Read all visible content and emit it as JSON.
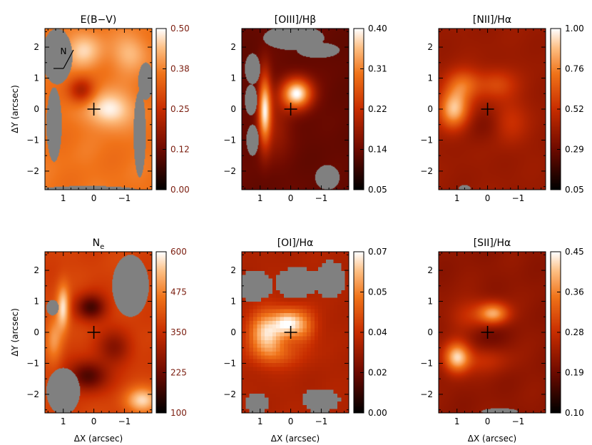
{
  "chart_data": [
    {
      "type": "heatmap",
      "title": "E(B−V)",
      "colorbar_ticks": [
        "0.50",
        "0.38",
        "0.25",
        "0.12",
        "0.00"
      ],
      "colorbar_tick_color": "#7a1c0e",
      "xlabel": "",
      "ylabel": "ΔY (arcsec)",
      "x_ticks": [
        "1",
        "0",
        "−1"
      ],
      "y_ticks": [
        "2",
        "1",
        "0",
        "−1",
        "−2"
      ],
      "xlim": [
        1.6,
        -1.9
      ],
      "ylim": [
        -2.6,
        2.6
      ],
      "vmin": 0.0,
      "vmax": 0.5,
      "compass": "N",
      "center_marker": [
        0,
        0
      ],
      "field": {
        "base": 0.36,
        "blobs": [
          {
            "x": -0.5,
            "y": 0.0,
            "sx": 0.5,
            "sy": 0.4,
            "a": 0.14
          },
          {
            "x": 0.3,
            "y": 1.9,
            "sx": 0.4,
            "sy": 0.4,
            "a": 0.1
          },
          {
            "x": 0.4,
            "y": 0.6,
            "sx": 0.3,
            "sy": 0.3,
            "a": -0.16
          },
          {
            "x": -1.2,
            "y": 1.8,
            "sx": 0.4,
            "sy": 0.4,
            "a": 0.08
          }
        ],
        "mask": [
          {
            "x": 1.2,
            "y": 1.7,
            "rx": 0.5,
            "ry": 0.9
          },
          {
            "x": 1.3,
            "y": -0.5,
            "rx": 0.25,
            "ry": 1.2
          },
          {
            "x": -1.7,
            "y": 0.9,
            "rx": 0.25,
            "ry": 0.6
          },
          {
            "x": -1.5,
            "y": -0.8,
            "rx": 0.2,
            "ry": 1.4
          },
          {
            "x": 0.2,
            "y": -2.6,
            "rx": 1.6,
            "ry": 0.12
          }
        ]
      }
    },
    {
      "type": "heatmap",
      "title": "[OIII]/Hβ",
      "colorbar_ticks": [
        "0.40",
        "0.31",
        "0.22",
        "0.14",
        "0.05"
      ],
      "colorbar_tick_color": "#000000",
      "xlabel": "",
      "ylabel": "",
      "x_ticks": [
        "1",
        "0",
        "−1"
      ],
      "y_ticks": [
        "2",
        "1",
        "0",
        "−1",
        "−2"
      ],
      "xlim": [
        1.6,
        -1.9
      ],
      "ylim": [
        -2.6,
        2.6
      ],
      "vmin": 0.05,
      "vmax": 0.4,
      "center_marker": [
        0,
        0
      ],
      "field": {
        "base": 0.13,
        "blobs": [
          {
            "x": -0.2,
            "y": 0.5,
            "sx": 0.35,
            "sy": 0.35,
            "a": 0.27
          },
          {
            "x": 0.85,
            "y": 0.0,
            "sx": 0.15,
            "sy": 0.8,
            "a": 0.24
          },
          {
            "x": 0.5,
            "y": -0.6,
            "sx": 0.35,
            "sy": 0.7,
            "a": 0.05
          }
        ],
        "mask": [
          {
            "x": 1.25,
            "y": 1.3,
            "rx": 0.25,
            "ry": 0.5
          },
          {
            "x": 1.3,
            "y": 0.3,
            "rx": 0.2,
            "ry": 0.5
          },
          {
            "x": 1.25,
            "y": -1.0,
            "rx": 0.2,
            "ry": 0.5
          },
          {
            "x": -0.1,
            "y": 2.3,
            "rx": 1.0,
            "ry": 0.4
          },
          {
            "x": -0.9,
            "y": 1.9,
            "rx": 0.7,
            "ry": 0.25
          },
          {
            "x": -1.2,
            "y": -2.2,
            "rx": 0.4,
            "ry": 0.4
          }
        ]
      }
    },
    {
      "type": "heatmap",
      "title": "[NII]/Hα",
      "colorbar_ticks": [
        "1.00",
        "0.76",
        "0.52",
        "0.29",
        "0.05"
      ],
      "colorbar_tick_color": "#000000",
      "xlabel": "",
      "ylabel": "",
      "x_ticks": [
        "1",
        "0",
        "−1"
      ],
      "y_ticks": [
        "2",
        "1",
        "0",
        "−1",
        "−2"
      ],
      "xlim": [
        1.6,
        -1.9
      ],
      "ylim": [
        -2.6,
        2.6
      ],
      "vmin": 0.05,
      "vmax": 1.0,
      "center_marker": [
        0,
        0
      ],
      "field": {
        "base": 0.4,
        "blobs": [
          {
            "x": 1.1,
            "y": 0.0,
            "sx": 0.35,
            "sy": 0.45,
            "a": 0.5
          },
          {
            "x": 0.8,
            "y": 0.8,
            "sx": 0.4,
            "sy": 0.35,
            "a": 0.28
          },
          {
            "x": -0.3,
            "y": 0.8,
            "sx": 0.45,
            "sy": 0.35,
            "a": 0.2
          },
          {
            "x": -0.7,
            "y": -0.4,
            "sx": 0.4,
            "sy": 0.5,
            "a": 0.15
          },
          {
            "x": 0.1,
            "y": -0.5,
            "sx": 0.5,
            "sy": 0.4,
            "a": -0.08
          }
        ],
        "mask": [
          {
            "x": 0.75,
            "y": -2.55,
            "rx": 0.2,
            "ry": 0.1
          }
        ]
      }
    },
    {
      "type": "heatmap",
      "title": "N",
      "title_subscript": "e",
      "colorbar_ticks": [
        "600",
        "475",
        "350",
        "225",
        "100"
      ],
      "colorbar_tick_color": "#7a1c0e",
      "xlabel": "ΔX (arcsec)",
      "ylabel": "ΔY (arcsec)",
      "x_ticks": [
        "1",
        "0",
        "−1"
      ],
      "y_ticks": [
        "2",
        "1",
        "0",
        "−1",
        "−2"
      ],
      "xlim": [
        1.6,
        -1.9
      ],
      "ylim": [
        -2.6,
        2.6
      ],
      "vmin": 100,
      "vmax": 600,
      "center_marker": [
        0,
        0
      ],
      "field": {
        "base": 380,
        "blobs": [
          {
            "x": 1.0,
            "y": 0.8,
            "sx": 0.15,
            "sy": 0.5,
            "a": 200
          },
          {
            "x": -1.6,
            "y": -2.2,
            "sx": 0.4,
            "sy": 0.3,
            "a": 180
          },
          {
            "x": 0.1,
            "y": 0.8,
            "sx": 0.35,
            "sy": 0.3,
            "a": -200
          },
          {
            "x": 0.2,
            "y": -1.4,
            "sx": 0.45,
            "sy": 0.35,
            "a": -200
          },
          {
            "x": -0.7,
            "y": -0.5,
            "sx": 0.4,
            "sy": 0.4,
            "a": -120
          },
          {
            "x": 1.3,
            "y": -0.2,
            "sx": 0.2,
            "sy": 0.6,
            "a": 120
          }
        ],
        "mask": [
          {
            "x": -1.2,
            "y": 1.5,
            "rx": 0.6,
            "ry": 1.0
          },
          {
            "x": 1.35,
            "y": 0.8,
            "rx": 0.2,
            "ry": 0.25
          },
          {
            "x": 1.0,
            "y": -1.9,
            "rx": 0.55,
            "ry": 0.75
          }
        ]
      }
    },
    {
      "type": "heatmap",
      "title": "[OI]/Hα",
      "colorbar_ticks": [
        "0.07",
        "0.05",
        "0.04",
        "0.02",
        "0.00"
      ],
      "colorbar_tick_color": "#000000",
      "xlabel": "ΔX (arcsec)",
      "ylabel": "",
      "x_ticks": [
        "1",
        "0",
        "−1"
      ],
      "y_ticks": [
        "2",
        "1",
        "0",
        "−1",
        "−2"
      ],
      "xlim": [
        1.6,
        -1.9
      ],
      "ylim": [
        -2.6,
        2.6
      ],
      "vmin": 0.0,
      "vmax": 0.07,
      "pixelated": true,
      "center_marker": [
        0,
        0
      ],
      "field": {
        "base": 0.03,
        "blobs": [
          {
            "x": 0.8,
            "y": 0.0,
            "sx": 0.4,
            "sy": 0.5,
            "a": 0.035
          },
          {
            "x": 0.1,
            "y": 0.3,
            "sx": 0.3,
            "sy": 0.3,
            "a": 0.03
          },
          {
            "x": 0.4,
            "y": -0.7,
            "sx": 0.6,
            "sy": 0.3,
            "a": 0.012
          },
          {
            "x": -0.4,
            "y": 0.2,
            "sx": 0.3,
            "sy": 0.4,
            "a": 0.02
          }
        ],
        "mask": [
          {
            "x": 1.2,
            "y": 1.5,
            "rx": 0.6,
            "ry": 0.5
          },
          {
            "x": -0.2,
            "y": 1.6,
            "rx": 0.7,
            "ry": 0.5
          },
          {
            "x": -1.3,
            "y": 1.7,
            "rx": 0.5,
            "ry": 0.6
          },
          {
            "x": 1.1,
            "y": -2.3,
            "rx": 0.4,
            "ry": 0.3
          },
          {
            "x": -1.0,
            "y": -2.2,
            "rx": 0.6,
            "ry": 0.4
          }
        ]
      }
    },
    {
      "type": "heatmap",
      "title": "[SII]/Hα",
      "colorbar_ticks": [
        "0.45",
        "0.36",
        "0.28",
        "0.19",
        "0.10"
      ],
      "colorbar_tick_color": "#000000",
      "xlabel": "ΔX (arcsec)",
      "ylabel": "",
      "x_ticks": [
        "1",
        "0",
        "−1"
      ],
      "y_ticks": [
        "2",
        "1",
        "0",
        "−1",
        "−2"
      ],
      "xlim": [
        1.6,
        -1.9
      ],
      "ylim": [
        -2.6,
        2.6
      ],
      "vmin": 0.1,
      "vmax": 0.45,
      "center_marker": [
        0,
        0
      ],
      "field": {
        "base": 0.22,
        "blobs": [
          {
            "x": 1.0,
            "y": -0.8,
            "sx": 0.3,
            "sy": 0.35,
            "a": 0.2
          },
          {
            "x": -0.2,
            "y": 0.6,
            "sx": 0.35,
            "sy": 0.25,
            "a": 0.17
          },
          {
            "x": 0.6,
            "y": 0.5,
            "sx": 0.5,
            "sy": 0.4,
            "a": 0.06
          },
          {
            "x": 0.1,
            "y": -0.9,
            "sx": 0.6,
            "sy": 0.3,
            "a": 0.05
          },
          {
            "x": 0.1,
            "y": 0.0,
            "sx": 0.5,
            "sy": 0.4,
            "a": -0.04
          }
        ],
        "mask": [
          {
            "x": -0.4,
            "y": -2.55,
            "rx": 0.6,
            "ry": 0.1
          }
        ]
      }
    }
  ]
}
